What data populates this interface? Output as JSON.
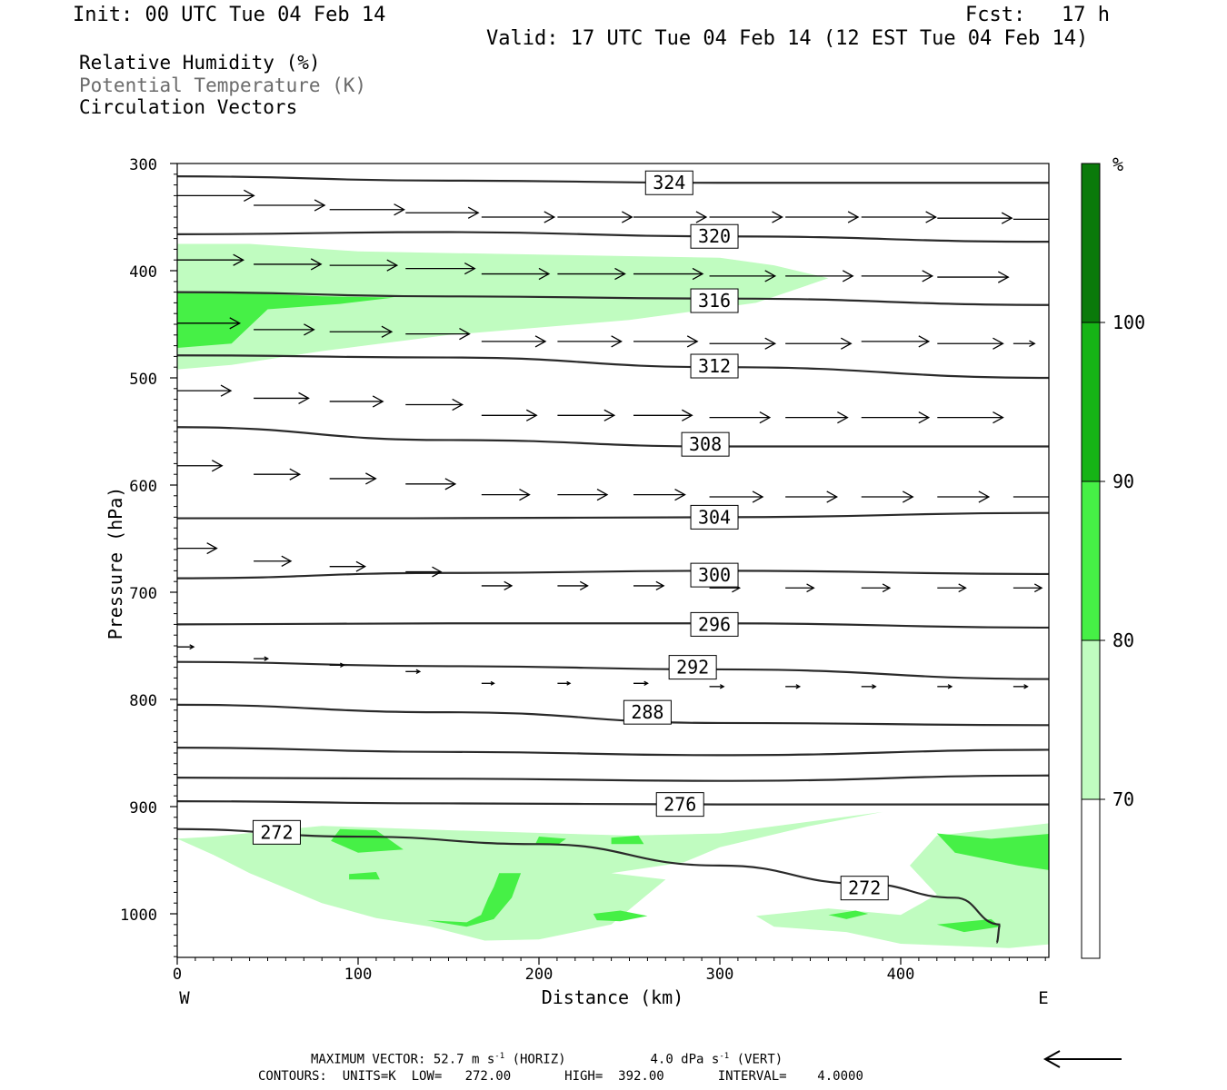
{
  "header": {
    "init": "Init: 00 UTC Tue 04 Feb 14",
    "fcst_label": "Fcst:",
    "fcst_value": "17 h",
    "valid": "Valid: 17 UTC Tue 04 Feb 14 (12 EST Tue 04 Feb 14)"
  },
  "legend": {
    "rh": "Relative Humidity (%)",
    "theta": "Potential Temperature (K)",
    "vectors": "Circulation Vectors"
  },
  "footer": {
    "max_vector": "MAXIMUM VECTOR:  52.7 m s",
    "max_vector_horiz": "(HORIZ)",
    "max_vector_vert_val": "4.0 dPa s",
    "max_vector_vert": "(VERT)",
    "exponent": "-1",
    "contours": "CONTOURS:  UNITS=K  LOW=   272.00       HIGH=  392.00       INTERVAL=    4.0000"
  },
  "colors": {
    "rh_70_80": "#c0fcc0",
    "rh_80_90": "#46f046",
    "rh_90_100": "#16b416",
    "rh_100": "#0a7a0a",
    "theta_line": "#2a2a2a"
  },
  "chart_data": {
    "type": "cross-section",
    "xlabel": "Distance (km)",
    "ylabel": "Pressure (hPa)",
    "x_range": [
      0,
      485
    ],
    "y_range": [
      300,
      1040
    ],
    "x_ticks": [
      0,
      100,
      200,
      300,
      400
    ],
    "y_ticks": [
      300,
      400,
      500,
      600,
      700,
      800,
      900,
      1000
    ],
    "x_end_labels": {
      "left": "W",
      "right": "E"
    },
    "colorbar": {
      "unit": "%",
      "levels": [
        70,
        80,
        90,
        100
      ]
    },
    "theta_contours": [
      {
        "label": "324",
        "label_x": 272,
        "points": [
          [
            0,
            312
          ],
          [
            150,
            316
          ],
          [
            300,
            318
          ],
          [
            485,
            318
          ]
        ]
      },
      {
        "label": "320",
        "label_x": 297,
        "points": [
          [
            0,
            366
          ],
          [
            150,
            364
          ],
          [
            300,
            368
          ],
          [
            485,
            373
          ]
        ]
      },
      {
        "label": "316",
        "label_x": 297,
        "points": [
          [
            0,
            420
          ],
          [
            150,
            424
          ],
          [
            300,
            426
          ],
          [
            485,
            432
          ]
        ]
      },
      {
        "label": "312",
        "label_x": 297,
        "points": [
          [
            0,
            479
          ],
          [
            150,
            481
          ],
          [
            300,
            490
          ],
          [
            485,
            500
          ]
        ]
      },
      {
        "label": "308",
        "label_x": 292,
        "points": [
          [
            0,
            546
          ],
          [
            150,
            558
          ],
          [
            300,
            564
          ],
          [
            485,
            564
          ]
        ]
      },
      {
        "label": "304",
        "label_x": 297,
        "points": [
          [
            0,
            631
          ],
          [
            130,
            631
          ],
          [
            300,
            630
          ],
          [
            485,
            626
          ]
        ]
      },
      {
        "label": "300",
        "label_x": 297,
        "points": [
          [
            0,
            687
          ],
          [
            150,
            682
          ],
          [
            300,
            680
          ],
          [
            485,
            683
          ]
        ]
      },
      {
        "label": "296",
        "label_x": 297,
        "points": [
          [
            0,
            730
          ],
          [
            150,
            729
          ],
          [
            300,
            729
          ],
          [
            485,
            733
          ]
        ]
      },
      {
        "label": "292",
        "label_x": 285,
        "points": [
          [
            0,
            765
          ],
          [
            150,
            769
          ],
          [
            300,
            772
          ],
          [
            485,
            781
          ]
        ]
      },
      {
        "label": "288",
        "label_x": 260,
        "points": [
          [
            0,
            805
          ],
          [
            150,
            812
          ],
          [
            300,
            822
          ],
          [
            485,
            824
          ]
        ]
      },
      {
        "label": "",
        "label_x": null,
        "points": [
          [
            0,
            845
          ],
          [
            150,
            849
          ],
          [
            300,
            852
          ],
          [
            485,
            847
          ]
        ]
      },
      {
        "label": "",
        "label_x": null,
        "points": [
          [
            0,
            873
          ],
          [
            150,
            874
          ],
          [
            300,
            876
          ],
          [
            485,
            871
          ]
        ]
      },
      {
        "label": "276",
        "label_x": 272,
        "points": [
          [
            0,
            895
          ],
          [
            150,
            897
          ],
          [
            300,
            898
          ],
          [
            485,
            898
          ]
        ]
      },
      {
        "label": "272",
        "label_x": 272,
        "points": [
          [
            0,
            921
          ],
          [
            100,
            928
          ],
          [
            200,
            935
          ],
          [
            300,
            955
          ],
          [
            380,
            972
          ],
          [
            430,
            985
          ],
          [
            455,
            1010
          ],
          [
            453,
            1027
          ]
        ]
      }
    ],
    "theta_label_positions": {
      "324": [
        272,
        318
      ],
      "320": [
        297,
        368
      ],
      "316": [
        297,
        428
      ],
      "312": [
        297,
        489
      ],
      "308": [
        292,
        562
      ],
      "304": [
        297,
        630
      ],
      "300": [
        297,
        684
      ],
      "296": [
        297,
        730
      ],
      "292": [
        285,
        770
      ],
      "288": [
        260,
        812
      ],
      "276": [
        278,
        898
      ],
      "272a": [
        55,
        924
      ],
      "272b": [
        380,
        976
      ]
    },
    "rh_regions": [
      {
        "level": "70-80",
        "points": [
          [
            0,
            375
          ],
          [
            40,
            375
          ],
          [
            100,
            382
          ],
          [
            300,
            388
          ],
          [
            330,
            395
          ],
          [
            360,
            407
          ],
          [
            320,
            430
          ],
          [
            250,
            446
          ],
          [
            150,
            460
          ],
          [
            80,
            475
          ],
          [
            30,
            488
          ],
          [
            0,
            492
          ]
        ]
      },
      {
        "level": "80-90",
        "points": [
          [
            0,
            420
          ],
          [
            40,
            421
          ],
          [
            80,
            424
          ],
          [
            120,
            425
          ],
          [
            90,
            431
          ],
          [
            50,
            436
          ],
          [
            40,
            452
          ],
          [
            30,
            468
          ],
          [
            0,
            472
          ]
        ]
      },
      {
        "level": "70-80",
        "points": [
          [
            0,
            930
          ],
          [
            20,
            928
          ],
          [
            80,
            918
          ],
          [
            150,
            922
          ],
          [
            250,
            927
          ],
          [
            300,
            925
          ],
          [
            390,
            905
          ],
          [
            350,
            918
          ],
          [
            300,
            938
          ],
          [
            280,
            952
          ],
          [
            240,
            962
          ],
          [
            270,
            968
          ],
          [
            240,
            1010
          ],
          [
            200,
            1024
          ],
          [
            170,
            1025
          ],
          [
            140,
            1012
          ],
          [
            110,
            1004
          ],
          [
            80,
            990
          ],
          [
            40,
            962
          ],
          [
            20,
            945
          ]
        ]
      },
      {
        "level": "70-80",
        "points": [
          [
            320,
            1002
          ],
          [
            360,
            995
          ],
          [
            400,
            1001
          ],
          [
            420,
            982
          ],
          [
            405,
            955
          ],
          [
            420,
            927
          ],
          [
            485,
            915
          ],
          [
            485,
            1028
          ],
          [
            460,
            1032
          ],
          [
            400,
            1028
          ],
          [
            370,
            1017
          ],
          [
            330,
            1012
          ]
        ]
      },
      {
        "level": "80-90",
        "points": [
          [
            90,
            921
          ],
          [
            110,
            922
          ],
          [
            125,
            940
          ],
          [
            100,
            943
          ],
          [
            85,
            932
          ]
        ]
      },
      {
        "level": "80-90",
        "points": [
          [
            95,
            963
          ],
          [
            110,
            961
          ],
          [
            112,
            968
          ],
          [
            95,
            968
          ]
        ]
      },
      {
        "level": "80-90",
        "points": [
          [
            138,
            1006
          ],
          [
            160,
            1008
          ],
          [
            168,
            1001
          ],
          [
            172,
            985
          ],
          [
            175,
            975
          ],
          [
            178,
            962
          ],
          [
            190,
            962
          ],
          [
            185,
            985
          ],
          [
            175,
            1005
          ],
          [
            160,
            1012
          ]
        ]
      },
      {
        "level": "80-90",
        "points": [
          [
            230,
            1000
          ],
          [
            245,
            997
          ],
          [
            260,
            1002
          ],
          [
            245,
            1007
          ],
          [
            232,
            1006
          ]
        ]
      },
      {
        "level": "80-90",
        "points": [
          [
            360,
            1001
          ],
          [
            375,
            997
          ],
          [
            382,
            1000
          ],
          [
            370,
            1005
          ]
        ]
      },
      {
        "level": "80-90",
        "points": [
          [
            420,
            1010
          ],
          [
            450,
            1005
          ],
          [
            455,
            1012
          ],
          [
            435,
            1017
          ]
        ]
      },
      {
        "level": "80-90",
        "points": [
          [
            420,
            925
          ],
          [
            450,
            930
          ],
          [
            485,
            925
          ],
          [
            485,
            960
          ],
          [
            465,
            955
          ],
          [
            430,
            943
          ]
        ]
      },
      {
        "level": "80-90",
        "points": [
          [
            240,
            929
          ],
          [
            255,
            927
          ],
          [
            258,
            935
          ],
          [
            240,
            935
          ]
        ]
      },
      {
        "level": "80-90",
        "points": [
          [
            200,
            928
          ],
          [
            215,
            930
          ],
          [
            210,
            936
          ],
          [
            198,
            935
          ]
        ]
      }
    ],
    "vectors": [
      {
        "x": 0,
        "p": 330,
        "u": 43
      },
      {
        "x": 42,
        "p": 339,
        "u": 40
      },
      {
        "x": 84,
        "p": 343,
        "u": 42
      },
      {
        "x": 126,
        "p": 346,
        "u": 41
      },
      {
        "x": 168,
        "p": 350,
        "u": 41
      },
      {
        "x": 210,
        "p": 350,
        "u": 42
      },
      {
        "x": 252,
        "p": 350,
        "u": 41
      },
      {
        "x": 294,
        "p": 350,
        "u": 41
      },
      {
        "x": 336,
        "p": 350,
        "u": 41
      },
      {
        "x": 378,
        "p": 350,
        "u": 42
      },
      {
        "x": 420,
        "p": 351,
        "u": 42
      },
      {
        "x": 462,
        "p": 352,
        "u": 39
      },
      {
        "x": 0,
        "p": 390,
        "u": 37
      },
      {
        "x": 42,
        "p": 394,
        "u": 38
      },
      {
        "x": 84,
        "p": 395,
        "u": 38
      },
      {
        "x": 126,
        "p": 398,
        "u": 39
      },
      {
        "x": 168,
        "p": 403,
        "u": 38
      },
      {
        "x": 210,
        "p": 403,
        "u": 38
      },
      {
        "x": 252,
        "p": 403,
        "u": 39
      },
      {
        "x": 294,
        "p": 405,
        "u": 37
      },
      {
        "x": 336,
        "p": 405,
        "u": 38
      },
      {
        "x": 378,
        "p": 405,
        "u": 40
      },
      {
        "x": 420,
        "p": 406,
        "u": 40
      },
      {
        "x": 0,
        "p": 449,
        "u": 35
      },
      {
        "x": 42,
        "p": 455,
        "u": 34
      },
      {
        "x": 84,
        "p": 457,
        "u": 35
      },
      {
        "x": 126,
        "p": 459,
        "u": 36
      },
      {
        "x": 168,
        "p": 466,
        "u": 36
      },
      {
        "x": 210,
        "p": 466,
        "u": 36
      },
      {
        "x": 252,
        "p": 466,
        "u": 36
      },
      {
        "x": 294,
        "p": 468,
        "u": 37
      },
      {
        "x": 336,
        "p": 468,
        "u": 37
      },
      {
        "x": 378,
        "p": 466,
        "u": 38
      },
      {
        "x": 420,
        "p": 468,
        "u": 37
      },
      {
        "x": 462,
        "p": 468,
        "u": 12
      },
      {
        "x": 0,
        "p": 512,
        "u": 30
      },
      {
        "x": 42,
        "p": 519,
        "u": 31
      },
      {
        "x": 84,
        "p": 522,
        "u": 30
      },
      {
        "x": 126,
        "p": 525,
        "u": 32
      },
      {
        "x": 168,
        "p": 535,
        "u": 31
      },
      {
        "x": 210,
        "p": 535,
        "u": 32
      },
      {
        "x": 252,
        "p": 535,
        "u": 33
      },
      {
        "x": 294,
        "p": 537,
        "u": 34
      },
      {
        "x": 336,
        "p": 537,
        "u": 35
      },
      {
        "x": 378,
        "p": 537,
        "u": 38
      },
      {
        "x": 420,
        "p": 537,
        "u": 37
      },
      {
        "x": 0,
        "p": 582,
        "u": 25
      },
      {
        "x": 42,
        "p": 590,
        "u": 26
      },
      {
        "x": 84,
        "p": 594,
        "u": 26
      },
      {
        "x": 126,
        "p": 599,
        "u": 28
      },
      {
        "x": 168,
        "p": 609,
        "u": 27
      },
      {
        "x": 210,
        "p": 609,
        "u": 28
      },
      {
        "x": 252,
        "p": 609,
        "u": 29
      },
      {
        "x": 294,
        "p": 611,
        "u": 30
      },
      {
        "x": 336,
        "p": 611,
        "u": 29
      },
      {
        "x": 378,
        "p": 611,
        "u": 29
      },
      {
        "x": 420,
        "p": 611,
        "u": 29
      },
      {
        "x": 462,
        "p": 611,
        "u": 27
      },
      {
        "x": 0,
        "p": 659,
        "u": 22
      },
      {
        "x": 42,
        "p": 671,
        "u": 21
      },
      {
        "x": 84,
        "p": 676,
        "u": 20
      },
      {
        "x": 126,
        "p": 681,
        "u": 20
      },
      {
        "x": 168,
        "p": 694,
        "u": 17
      },
      {
        "x": 210,
        "p": 694,
        "u": 17
      },
      {
        "x": 252,
        "p": 694,
        "u": 17
      },
      {
        "x": 294,
        "p": 696,
        "u": 17
      },
      {
        "x": 336,
        "p": 696,
        "u": 16
      },
      {
        "x": 378,
        "p": 696,
        "u": 16
      },
      {
        "x": 420,
        "p": 696,
        "u": 16
      },
      {
        "x": 462,
        "p": 696,
        "u": 16
      },
      {
        "x": 0,
        "p": 751,
        "u": 9
      },
      {
        "x": 42,
        "p": 762,
        "u": 8
      },
      {
        "x": 84,
        "p": 768,
        "u": 8
      },
      {
        "x": 126,
        "p": 774,
        "u": 8
      },
      {
        "x": 168,
        "p": 785,
        "u": 7
      },
      {
        "x": 210,
        "p": 785,
        "u": 7
      },
      {
        "x": 252,
        "p": 785,
        "u": 8
      },
      {
        "x": 294,
        "p": 788,
        "u": 8
      },
      {
        "x": 336,
        "p": 788,
        "u": 8
      },
      {
        "x": 378,
        "p": 788,
        "u": 8
      },
      {
        "x": 420,
        "p": 788,
        "u": 8
      },
      {
        "x": 462,
        "p": 788,
        "u": 8
      }
    ]
  }
}
